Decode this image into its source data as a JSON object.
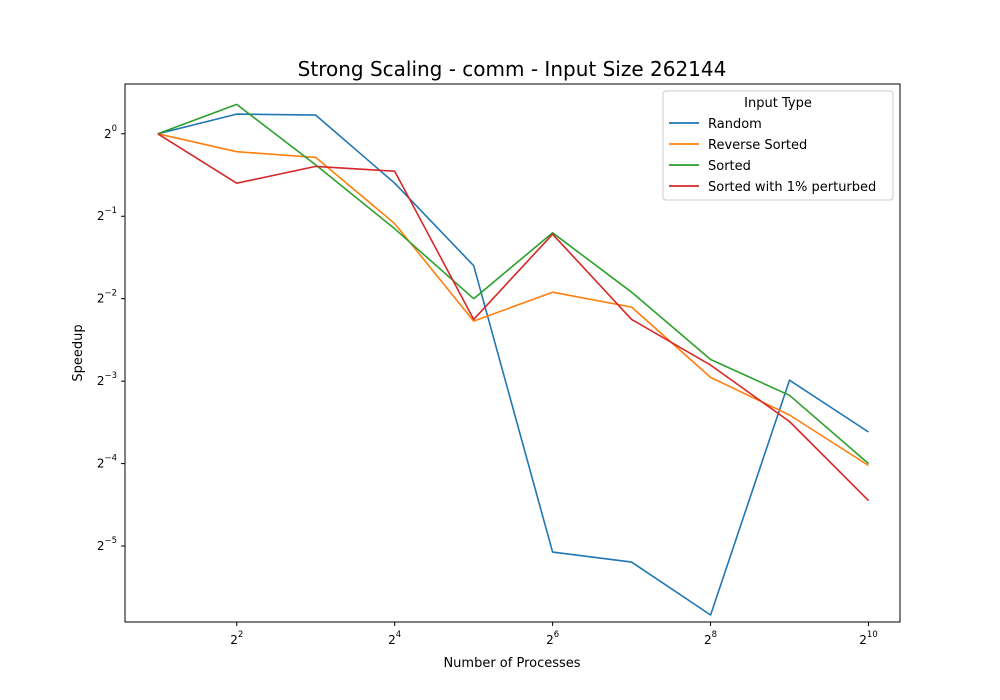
{
  "chart_data": {
    "type": "line",
    "title": "Strong Scaling - comm - Input Size 262144",
    "xlabel": "Number of Processes",
    "ylabel": "Speedup",
    "x_scale": "log2",
    "y_scale": "log2",
    "x": [
      2,
      4,
      8,
      16,
      32,
      64,
      128,
      256,
      512,
      1024
    ],
    "xlim": [
      1.5,
      1350
    ],
    "ylim": [
      0.0165,
      1.52
    ],
    "x_ticks": [
      {
        "value": 4,
        "base": "2",
        "exp": "2"
      },
      {
        "value": 16,
        "base": "2",
        "exp": "4"
      },
      {
        "value": 64,
        "base": "2",
        "exp": "6"
      },
      {
        "value": 256,
        "base": "2",
        "exp": "8"
      },
      {
        "value": 1024,
        "base": "2",
        "exp": "10"
      }
    ],
    "y_ticks": [
      {
        "value": 1,
        "base": "2",
        "exp": "0"
      },
      {
        "value": 0.5,
        "base": "2",
        "exp": "−1"
      },
      {
        "value": 0.25,
        "base": "2",
        "exp": "−2"
      },
      {
        "value": 0.125,
        "base": "2",
        "exp": "−3"
      },
      {
        "value": 0.0625,
        "base": "2",
        "exp": "−4"
      },
      {
        "value": 0.03125,
        "base": "2",
        "exp": "−5"
      }
    ],
    "grid": false,
    "legend": {
      "title": "Input Type",
      "position": "top-right"
    },
    "series": [
      {
        "name": "Random",
        "color": "#1f77b4",
        "values": [
          1.0,
          1.18,
          1.17,
          0.66,
          0.33,
          0.0297,
          0.0273,
          0.0175,
          0.126,
          0.0815
        ]
      },
      {
        "name": "Reverse Sorted",
        "color": "#ff7f0e",
        "values": [
          1.0,
          0.86,
          0.82,
          0.47,
          0.207,
          0.264,
          0.233,
          0.129,
          0.094,
          0.0615
        ]
      },
      {
        "name": "Sorted",
        "color": "#2ca02c",
        "values": [
          1.0,
          1.28,
          0.77,
          0.45,
          0.25,
          0.435,
          0.264,
          0.15,
          0.111,
          0.0625
        ]
      },
      {
        "name": "Sorted with 1% perturbed",
        "color": "#d62728",
        "values": [
          1.0,
          0.66,
          0.76,
          0.73,
          0.21,
          0.43,
          0.21,
          0.143,
          0.089,
          0.0458
        ]
      }
    ]
  }
}
